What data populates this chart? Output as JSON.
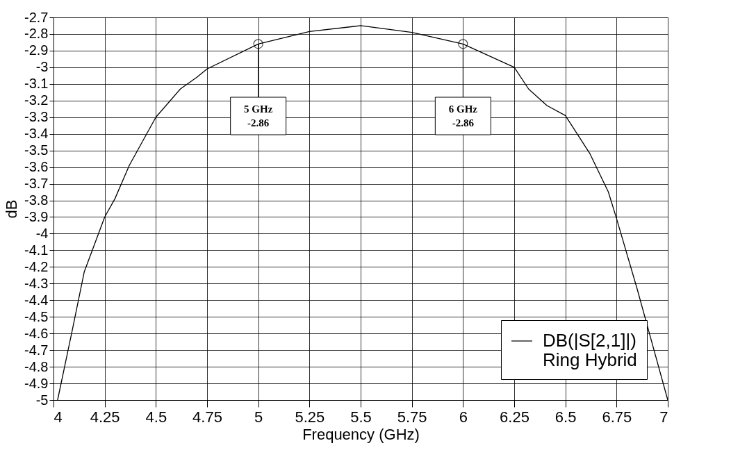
{
  "chart_data": {
    "type": "line",
    "xlabel": "Frequency (GHz)",
    "ylabel": "dB",
    "xlim": [
      4,
      7
    ],
    "ylim": [
      -5,
      -2.7
    ],
    "xticks": [
      4,
      4.25,
      4.5,
      4.75,
      5,
      5.25,
      5.5,
      5.75,
      6,
      6.25,
      6.5,
      6.75,
      7
    ],
    "yticks": [
      -2.7,
      -2.8,
      -2.9,
      -3,
      -3.1,
      -3.2,
      -3.3,
      -3.4,
      -3.5,
      -3.6,
      -3.7,
      -3.8,
      -3.9,
      -4,
      -4.1,
      -4.2,
      -4.3,
      -4.4,
      -4.5,
      -4.6,
      -4.7,
      -4.8,
      -4.9,
      -5
    ],
    "grid": true,
    "legend": "bottom right",
    "marker": "none",
    "line_style": "solid",
    "series": [
      {
        "name": "DB(|S[2,1]|)\nRing Hybrid",
        "color": "#000000",
        "x": [
          4.02,
          4.09,
          4.15,
          4.25,
          4.3,
          4.37,
          4.5,
          4.62,
          4.7,
          4.75,
          5,
          5.25,
          5.5,
          5.75,
          6,
          6.25,
          6.32,
          6.41,
          6.5,
          6.62,
          6.71,
          6.75,
          6.85,
          7.0
        ],
        "values": [
          -5,
          -4.59,
          -4.23,
          -3.9,
          -3.79,
          -3.59,
          -3.3,
          -3.13,
          -3.06,
          -3.01,
          -2.86,
          -2.785,
          -2.75,
          -2.79,
          -2.86,
          -3.0,
          -3.13,
          -3.23,
          -3.29,
          -3.52,
          -3.75,
          -3.91,
          -4.33,
          -5
        ]
      }
    ],
    "annotations": [
      {
        "text": "5 GHz\n-2.86",
        "x": 5,
        "y": -2.86
      },
      {
        "text": "6 GHz\n-2.86",
        "x": 6,
        "y": -2.86
      }
    ]
  }
}
